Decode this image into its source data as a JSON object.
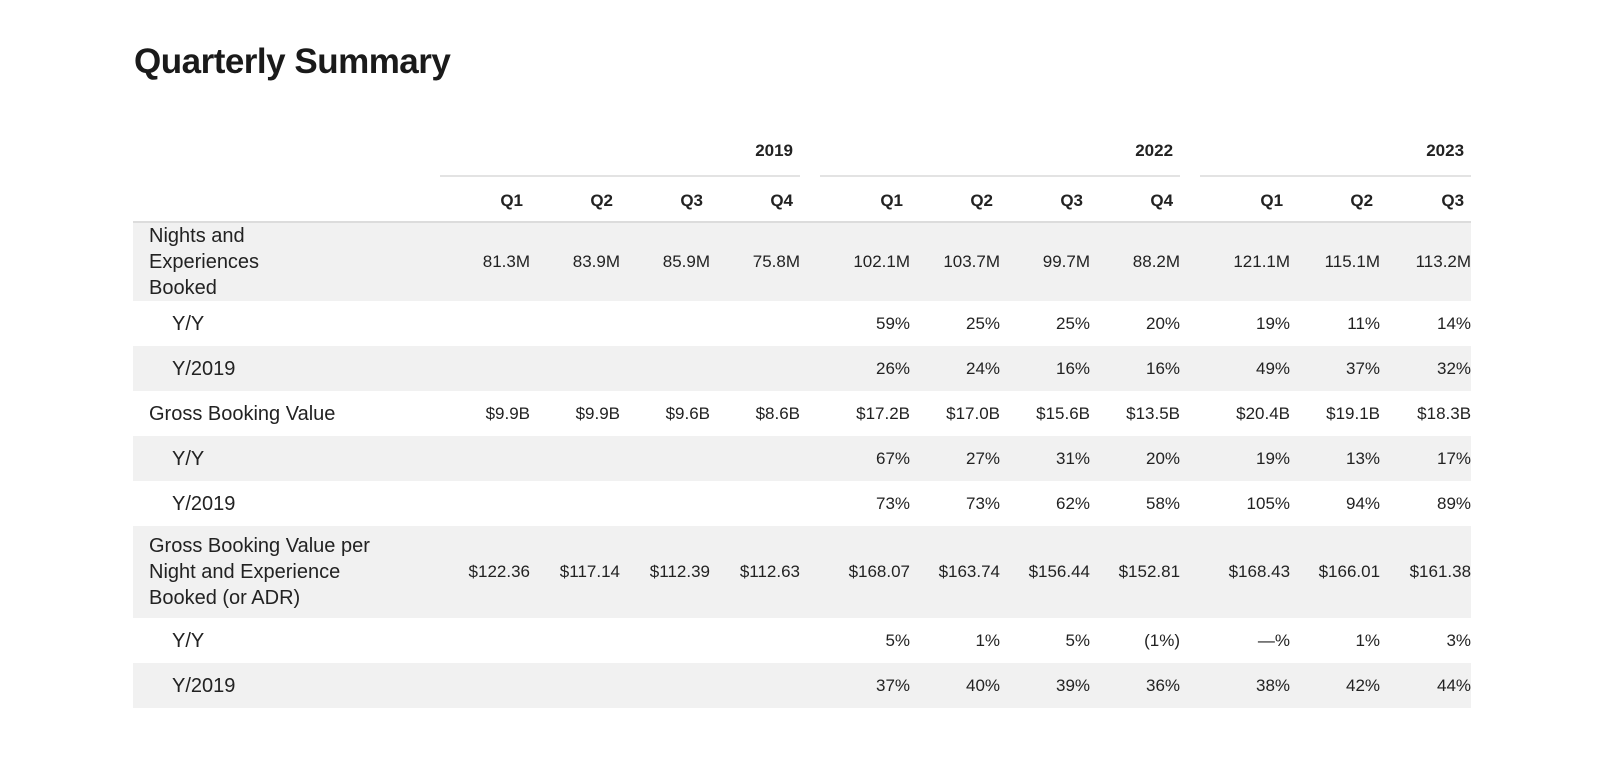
{
  "page": {
    "title": "Quarterly Summary"
  },
  "table": {
    "years": [
      "2019",
      "2022",
      "2023"
    ],
    "quarters": [
      "Q1",
      "Q2",
      "Q3",
      "Q4",
      "Q1",
      "Q2",
      "Q3",
      "Q4",
      "Q1",
      "Q2",
      "Q3"
    ],
    "rows": [
      {
        "label": "Nights and Experiences Booked",
        "values": [
          "81.3M",
          "83.9M",
          "85.9M",
          "75.8M",
          "102.1M",
          "103.7M",
          "99.7M",
          "88.2M",
          "121.1M",
          "115.1M",
          "113.2M"
        ]
      },
      {
        "label": "Y/Y",
        "values": [
          "",
          "",
          "",
          "",
          "59%",
          "25%",
          "25%",
          "20%",
          "19%",
          "11%",
          "14%"
        ]
      },
      {
        "label": "Y/2019",
        "values": [
          "",
          "",
          "",
          "",
          "26%",
          "24%",
          "16%",
          "16%",
          "49%",
          "37%",
          "32%"
        ]
      },
      {
        "label": "Gross Booking Value",
        "values": [
          "$9.9B",
          "$9.9B",
          "$9.6B",
          "$8.6B",
          "$17.2B",
          "$17.0B",
          "$15.6B",
          "$13.5B",
          "$20.4B",
          "$19.1B",
          "$18.3B"
        ]
      },
      {
        "label": "Y/Y",
        "values": [
          "",
          "",
          "",
          "",
          "67%",
          "27%",
          "31%",
          "20%",
          "19%",
          "13%",
          "17%"
        ]
      },
      {
        "label": "Y/2019",
        "values": [
          "",
          "",
          "",
          "",
          "73%",
          "73%",
          "62%",
          "58%",
          "105%",
          "94%",
          "89%"
        ]
      },
      {
        "label": "Gross Booking Value per Night and Experience Booked (or ADR)",
        "values": [
          "$122.36",
          "$117.14",
          "$112.39",
          "$112.63",
          "$168.07",
          "$163.74",
          "$156.44",
          "$152.81",
          "$168.43",
          "$166.01",
          "$161.38"
        ]
      },
      {
        "label": "Y/Y",
        "values": [
          "",
          "",
          "",
          "",
          "5%",
          "1%",
          "5%",
          "(1%)",
          "—%",
          "1%",
          "3%"
        ]
      },
      {
        "label": "Y/2019",
        "values": [
          "",
          "",
          "",
          "",
          "37%",
          "40%",
          "39%",
          "36%",
          "38%",
          "42%",
          "44%"
        ]
      }
    ]
  }
}
